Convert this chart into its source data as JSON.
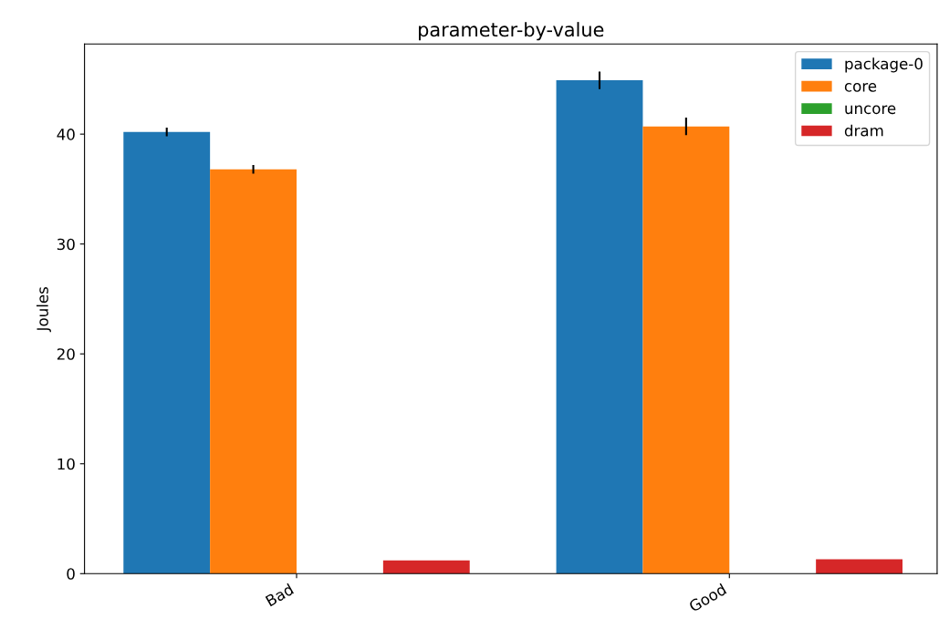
{
  "chart_data": {
    "type": "bar",
    "title": "parameter-by-value",
    "ylabel": "Joules",
    "categories": [
      "Bad",
      "Good"
    ],
    "series": [
      {
        "name": "package-0",
        "color": "#1f77b4",
        "values": [
          40.2,
          44.9
        ],
        "errors": [
          0.4,
          0.8
        ]
      },
      {
        "name": "core",
        "color": "#ff7f0e",
        "values": [
          36.8,
          40.7
        ],
        "errors": [
          0.4,
          0.8
        ]
      },
      {
        "name": "uncore",
        "color": "#2ca02c",
        "values": [
          0,
          0
        ]
      },
      {
        "name": "dram",
        "color": "#d62728",
        "values": [
          1.2,
          1.3
        ]
      }
    ],
    "ylim": [
      0,
      48.2
    ],
    "yticks": [
      0,
      10,
      20,
      30,
      40
    ],
    "legend": "top right",
    "grid": false
  }
}
